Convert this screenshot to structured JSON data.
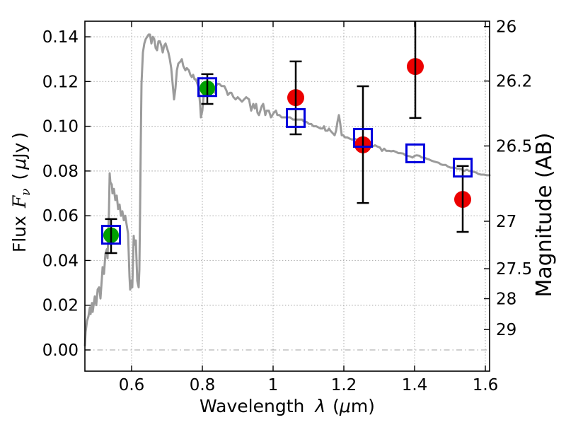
{
  "figure": {
    "background": "#ffffff",
    "frame_color": "#000000",
    "grid_color": "#b3b3b3"
  },
  "chart_data": {
    "type": "line+scatter",
    "title": "",
    "xlabel": {
      "word": "Wavelength",
      "lambda": "λ",
      "open": "(",
      "mu": "μ",
      "close": "m)"
    },
    "ylabel_left": {
      "word": "Flux",
      "F": "F",
      "nu": "ν",
      "open": "(",
      "mu": "μ",
      "unit": "Jy",
      "close": ")"
    },
    "ylabel_right": "Magnitude (AB)",
    "xlim": [
      0.468,
      1.612
    ],
    "ylim": [
      -0.00948,
      0.14697
    ],
    "grid": "dotted",
    "legend": "none",
    "x_ticks": [
      {
        "v": 0.6,
        "label": "0.6"
      },
      {
        "v": 0.8,
        "label": "0.8"
      },
      {
        "v": 1.0,
        "label": "1"
      },
      {
        "v": 1.2,
        "label": "1.2"
      },
      {
        "v": 1.4,
        "label": "1.4"
      },
      {
        "v": 1.6,
        "label": "1.6"
      }
    ],
    "y_ticks_left": [
      {
        "v": 0.0,
        "label": "0.00"
      },
      {
        "v": 0.02,
        "label": "0.02"
      },
      {
        "v": 0.04,
        "label": "0.04"
      },
      {
        "v": 0.06,
        "label": "0.06"
      },
      {
        "v": 0.08,
        "label": "0.08"
      },
      {
        "v": 0.1,
        "label": "0.10"
      },
      {
        "v": 0.12,
        "label": "0.12"
      },
      {
        "v": 0.14,
        "label": "0.14"
      }
    ],
    "y_ticks_right": [
      {
        "label": "26",
        "flux": 0.14454
      },
      {
        "label": "26.2",
        "flux": 0.12023
      },
      {
        "label": "26.5",
        "flux": 0.0912
      },
      {
        "label": "27",
        "flux": 0.05754
      },
      {
        "label": "27.5",
        "flux": 0.03631
      },
      {
        "label": "28",
        "flux": 0.02291
      },
      {
        "label": "29",
        "flux": 0.00912
      }
    ],
    "zero_line": {
      "v": 0.0,
      "style": "dash-dot"
    },
    "series": {
      "model_spectrum": {
        "name": "model spectrum",
        "kind": "line",
        "color": "#9b9b9b",
        "width": 3,
        "points": [
          [
            0.468,
            0.002
          ],
          [
            0.47,
            0.008
          ],
          [
            0.474,
            0.013
          ],
          [
            0.478,
            0.015
          ],
          [
            0.482,
            0.019
          ],
          [
            0.484,
            0.016
          ],
          [
            0.488,
            0.021
          ],
          [
            0.49,
            0.017
          ],
          [
            0.496,
            0.024
          ],
          [
            0.5,
            0.02
          ],
          [
            0.504,
            0.027
          ],
          [
            0.508,
            0.028
          ],
          [
            0.512,
            0.023
          ],
          [
            0.516,
            0.032
          ],
          [
            0.518,
            0.037
          ],
          [
            0.522,
            0.034
          ],
          [
            0.526,
            0.043
          ],
          [
            0.53,
            0.045
          ],
          [
            0.532,
            0.041
          ],
          [
            0.536,
            0.062
          ],
          [
            0.538,
            0.079
          ],
          [
            0.54,
            0.075
          ],
          [
            0.544,
            0.074
          ],
          [
            0.546,
            0.07
          ],
          [
            0.55,
            0.072
          ],
          [
            0.554,
            0.067
          ],
          [
            0.558,
            0.069
          ],
          [
            0.562,
            0.063
          ],
          [
            0.566,
            0.065
          ],
          [
            0.57,
            0.06
          ],
          [
            0.574,
            0.062
          ],
          [
            0.578,
            0.058
          ],
          [
            0.582,
            0.06
          ],
          [
            0.586,
            0.056
          ],
          [
            0.59,
            0.052
          ],
          [
            0.594,
            0.033
          ],
          [
            0.596,
            0.027
          ],
          [
            0.6,
            0.031
          ],
          [
            0.602,
            0.028
          ],
          [
            0.606,
            0.051
          ],
          [
            0.608,
            0.047
          ],
          [
            0.612,
            0.049
          ],
          [
            0.616,
            0.031
          ],
          [
            0.62,
            0.028
          ],
          [
            0.622,
            0.036
          ],
          [
            0.624,
            0.062
          ],
          [
            0.626,
            0.093
          ],
          [
            0.628,
            0.119
          ],
          [
            0.632,
            0.133
          ],
          [
            0.636,
            0.137
          ],
          [
            0.64,
            0.139
          ],
          [
            0.644,
            0.14
          ],
          [
            0.648,
            0.141
          ],
          [
            0.652,
            0.141
          ],
          [
            0.656,
            0.137
          ],
          [
            0.66,
            0.14
          ],
          [
            0.664,
            0.139
          ],
          [
            0.668,
            0.135
          ],
          [
            0.672,
            0.134
          ],
          [
            0.676,
            0.138
          ],
          [
            0.68,
            0.138
          ],
          [
            0.684,
            0.136
          ],
          [
            0.688,
            0.133
          ],
          [
            0.692,
            0.136
          ],
          [
            0.696,
            0.137
          ],
          [
            0.7,
            0.135
          ],
          [
            0.704,
            0.133
          ],
          [
            0.708,
            0.13
          ],
          [
            0.712,
            0.126
          ],
          [
            0.716,
            0.119
          ],
          [
            0.72,
            0.112
          ],
          [
            0.724,
            0.117
          ],
          [
            0.728,
            0.125
          ],
          [
            0.732,
            0.128
          ],
          [
            0.738,
            0.129
          ],
          [
            0.742,
            0.13
          ],
          [
            0.746,
            0.127
          ],
          [
            0.752,
            0.125
          ],
          [
            0.756,
            0.126
          ],
          [
            0.762,
            0.125
          ],
          [
            0.766,
            0.123
          ],
          [
            0.77,
            0.122
          ],
          [
            0.774,
            0.123
          ],
          [
            0.778,
            0.121
          ],
          [
            0.782,
            0.121
          ],
          [
            0.786,
            0.119
          ],
          [
            0.79,
            0.117
          ],
          [
            0.794,
            0.109
          ],
          [
            0.796,
            0.104
          ],
          [
            0.8,
            0.107
          ],
          [
            0.804,
            0.114
          ],
          [
            0.808,
            0.116
          ],
          [
            0.814,
            0.117
          ],
          [
            0.818,
            0.116
          ],
          [
            0.824,
            0.114
          ],
          [
            0.828,
            0.116
          ],
          [
            0.834,
            0.115
          ],
          [
            0.838,
            0.118
          ],
          [
            0.844,
            0.119
          ],
          [
            0.848,
            0.119
          ],
          [
            0.854,
            0.118
          ],
          [
            0.862,
            0.118
          ],
          [
            0.868,
            0.116
          ],
          [
            0.872,
            0.114
          ],
          [
            0.878,
            0.115
          ],
          [
            0.882,
            0.115
          ],
          [
            0.888,
            0.113
          ],
          [
            0.894,
            0.112
          ],
          [
            0.9,
            0.113
          ],
          [
            0.906,
            0.112
          ],
          [
            0.912,
            0.111
          ],
          [
            0.918,
            0.112
          ],
          [
            0.924,
            0.113
          ],
          [
            0.932,
            0.112
          ],
          [
            0.938,
            0.107
          ],
          [
            0.942,
            0.109
          ],
          [
            0.944,
            0.11
          ],
          [
            0.948,
            0.108
          ],
          [
            0.952,
            0.11
          ],
          [
            0.956,
            0.106
          ],
          [
            0.96,
            0.105
          ],
          [
            0.964,
            0.107
          ],
          [
            0.968,
            0.109
          ],
          [
            0.972,
            0.11
          ],
          [
            0.976,
            0.107
          ],
          [
            0.978,
            0.105
          ],
          [
            0.982,
            0.107
          ],
          [
            0.988,
            0.107
          ],
          [
            0.992,
            0.105
          ],
          [
            0.994,
            0.104
          ],
          [
            0.998,
            0.105
          ],
          [
            1.002,
            0.106
          ],
          [
            1.008,
            0.107
          ],
          [
            1.012,
            0.105
          ],
          [
            1.018,
            0.105
          ],
          [
            1.024,
            0.104
          ],
          [
            1.032,
            0.104
          ],
          [
            1.04,
            0.104
          ],
          [
            1.048,
            0.104
          ],
          [
            1.056,
            0.103
          ],
          [
            1.064,
            0.103
          ],
          [
            1.072,
            0.103
          ],
          [
            1.082,
            0.103
          ],
          [
            1.088,
            0.102
          ],
          [
            1.094,
            0.102
          ],
          [
            1.102,
            0.101
          ],
          [
            1.108,
            0.101
          ],
          [
            1.114,
            0.1
          ],
          [
            1.122,
            0.1
          ],
          [
            1.128,
            0.0995
          ],
          [
            1.134,
            0.099
          ],
          [
            1.14,
            0.099
          ],
          [
            1.144,
            0.1
          ],
          [
            1.148,
            0.098
          ],
          [
            1.154,
            0.098
          ],
          [
            1.158,
            0.099
          ],
          [
            1.162,
            0.098
          ],
          [
            1.168,
            0.097
          ],
          [
            1.174,
            0.096
          ],
          [
            1.178,
            0.098
          ],
          [
            1.182,
            0.102
          ],
          [
            1.186,
            0.105
          ],
          [
            1.19,
            0.101
          ],
          [
            1.194,
            0.096
          ],
          [
            1.198,
            0.096
          ],
          [
            1.204,
            0.095
          ],
          [
            1.21,
            0.095
          ],
          [
            1.216,
            0.0945
          ],
          [
            1.224,
            0.094
          ],
          [
            1.23,
            0.0945
          ],
          [
            1.236,
            0.094
          ],
          [
            1.244,
            0.093
          ],
          [
            1.25,
            0.0935
          ],
          [
            1.256,
            0.093
          ],
          [
            1.264,
            0.092
          ],
          [
            1.27,
            0.0925
          ],
          [
            1.276,
            0.0915
          ],
          [
            1.282,
            0.091
          ],
          [
            1.288,
            0.0915
          ],
          [
            1.294,
            0.091
          ],
          [
            1.302,
            0.0905
          ],
          [
            1.308,
            0.089
          ],
          [
            1.314,
            0.09
          ],
          [
            1.32,
            0.089
          ],
          [
            1.328,
            0.089
          ],
          [
            1.334,
            0.0888
          ],
          [
            1.34,
            0.089
          ],
          [
            1.348,
            0.0885
          ],
          [
            1.354,
            0.088
          ],
          [
            1.36,
            0.088
          ],
          [
            1.368,
            0.0878
          ],
          [
            1.374,
            0.087
          ],
          [
            1.38,
            0.0868
          ],
          [
            1.388,
            0.0865
          ],
          [
            1.394,
            0.086
          ],
          [
            1.4,
            0.0868
          ],
          [
            1.406,
            0.087
          ],
          [
            1.414,
            0.0868
          ],
          [
            1.42,
            0.086
          ],
          [
            1.428,
            0.086
          ],
          [
            1.434,
            0.0855
          ],
          [
            1.44,
            0.0852
          ],
          [
            1.448,
            0.0846
          ],
          [
            1.454,
            0.0843
          ],
          [
            1.46,
            0.084
          ],
          [
            1.468,
            0.0837
          ],
          [
            1.474,
            0.083
          ],
          [
            1.48,
            0.0827
          ],
          [
            1.488,
            0.0827
          ],
          [
            1.494,
            0.082
          ],
          [
            1.502,
            0.0815
          ],
          [
            1.508,
            0.0815
          ],
          [
            1.514,
            0.0815
          ],
          [
            1.52,
            0.081
          ],
          [
            1.528,
            0.081
          ],
          [
            1.534,
            0.0806
          ],
          [
            1.54,
            0.08
          ],
          [
            1.548,
            0.0806
          ],
          [
            1.554,
            0.08
          ],
          [
            1.56,
            0.08
          ],
          [
            1.568,
            0.0796
          ],
          [
            1.574,
            0.0793
          ],
          [
            1.58,
            0.0787
          ],
          [
            1.588,
            0.0784
          ],
          [
            1.596,
            0.0784
          ],
          [
            1.604,
            0.0781
          ],
          [
            1.612,
            0.0781
          ]
        ]
      },
      "observed_optical": {
        "name": "observed flux (optical)",
        "kind": "scatter",
        "marker": "filled-circle",
        "color": "#00a000",
        "radius": 11,
        "points": [
          [
            0.542,
            0.0513
          ],
          [
            0.814,
            0.117
          ]
        ]
      },
      "observed_infrared": {
        "name": "observed flux (infrared)",
        "kind": "scatter",
        "marker": "filled-circle",
        "color": "#ec0000",
        "radius": 12,
        "points": [
          [
            1.064,
            0.1128
          ],
          [
            1.254,
            0.0917
          ],
          [
            1.402,
            0.1267
          ],
          [
            1.536,
            0.0673
          ]
        ]
      },
      "model_photometry": {
        "name": "model photometry",
        "kind": "scatter",
        "marker": "open-square",
        "color": "#0000dd",
        "size": 25,
        "stroke": 3,
        "points": [
          [
            0.542,
            0.0515
          ],
          [
            0.814,
            0.1175
          ],
          [
            1.064,
            0.1037
          ],
          [
            1.254,
            0.0948
          ],
          [
            1.402,
            0.0879
          ],
          [
            1.536,
            0.0815
          ]
        ]
      },
      "error_bars": {
        "name": "flux uncertainties",
        "color": "#000000",
        "width": 2.5,
        "cap_width": 17,
        "bars": [
          {
            "x": 0.542,
            "lo": 0.0433,
            "hi": 0.0585
          },
          {
            "x": 0.814,
            "lo": 0.11,
            "hi": 0.1233
          },
          {
            "x": 1.064,
            "lo": 0.0964,
            "hi": 0.129
          },
          {
            "x": 1.254,
            "lo": 0.0657,
            "hi": 0.1179
          },
          {
            "x": 1.402,
            "lo": 0.1037,
            "hi": 0.15,
            "hi_clipped": true
          },
          {
            "x": 1.536,
            "lo": 0.0528,
            "hi": 0.0822
          }
        ]
      }
    }
  }
}
